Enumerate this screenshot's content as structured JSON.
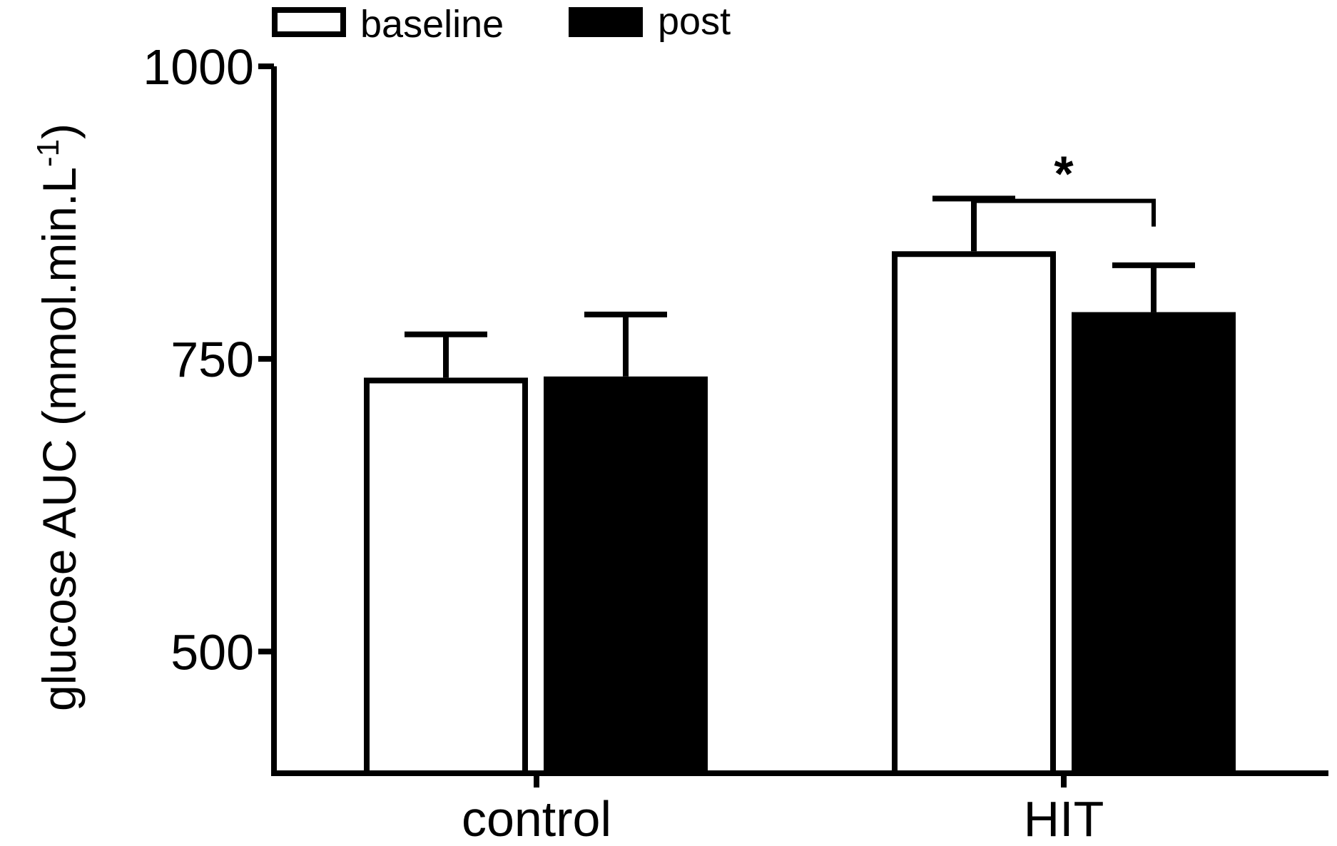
{
  "chart_data": {
    "type": "bar",
    "title": "",
    "xlabel": "",
    "ylabel": "glucose AUC (mmol.min.L",
    "ylabel_superscript": "-1",
    "ylabel_close": ")",
    "categories": [
      "control",
      "HIT"
    ],
    "series": [
      {
        "name": "baseline",
        "values": [
          734,
          842
        ],
        "errors": [
          37,
          45
        ],
        "fill": "#ffffff",
        "stroke": "#000000"
      },
      {
        "name": "post",
        "values": [
          735,
          790
        ],
        "errors": [
          53,
          40
        ],
        "fill": "#000000",
        "stroke": "#000000"
      }
    ],
    "ylim": [
      396,
      1000
    ],
    "yticks": [
      500,
      750,
      1000
    ],
    "ytick_labels": [
      "500",
      "750",
      "1000"
    ],
    "legend": "top-left, above plot",
    "grid": false,
    "annotations": [
      {
        "text": "*",
        "category": "HIT",
        "between": [
          "baseline",
          "post"
        ],
        "bracket_value": 885
      }
    ]
  }
}
